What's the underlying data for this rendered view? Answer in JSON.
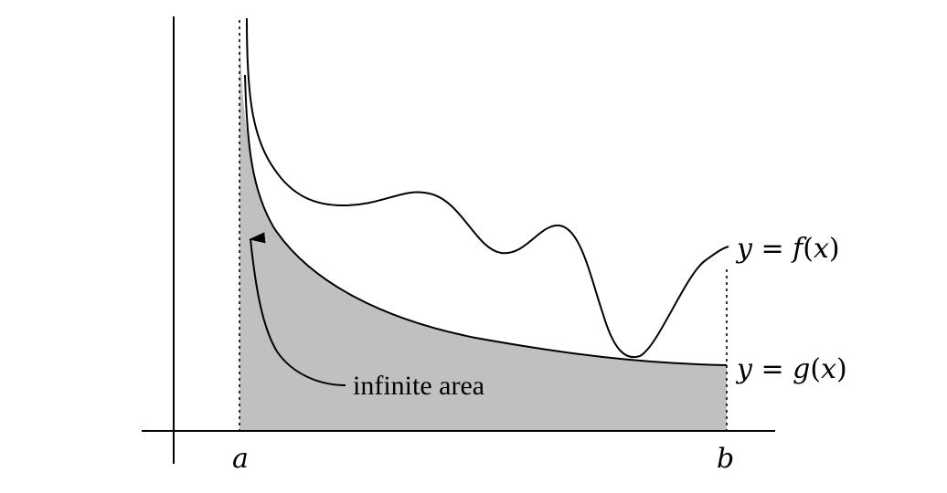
{
  "diagram": {
    "curve_f": {
      "lhs": "y",
      "eq": " = ",
      "fn": "f",
      "open": "(",
      "arg": "x",
      "close": ")"
    },
    "curve_g": {
      "lhs": "y",
      "eq": " = ",
      "fn": "g",
      "open": "(",
      "arg": "x",
      "close": ")"
    },
    "annotation": "infinite area",
    "x_tick_a": "a",
    "x_tick_b": "b",
    "shaded_fill": "#c0c0c0",
    "line_color": "#000000"
  }
}
